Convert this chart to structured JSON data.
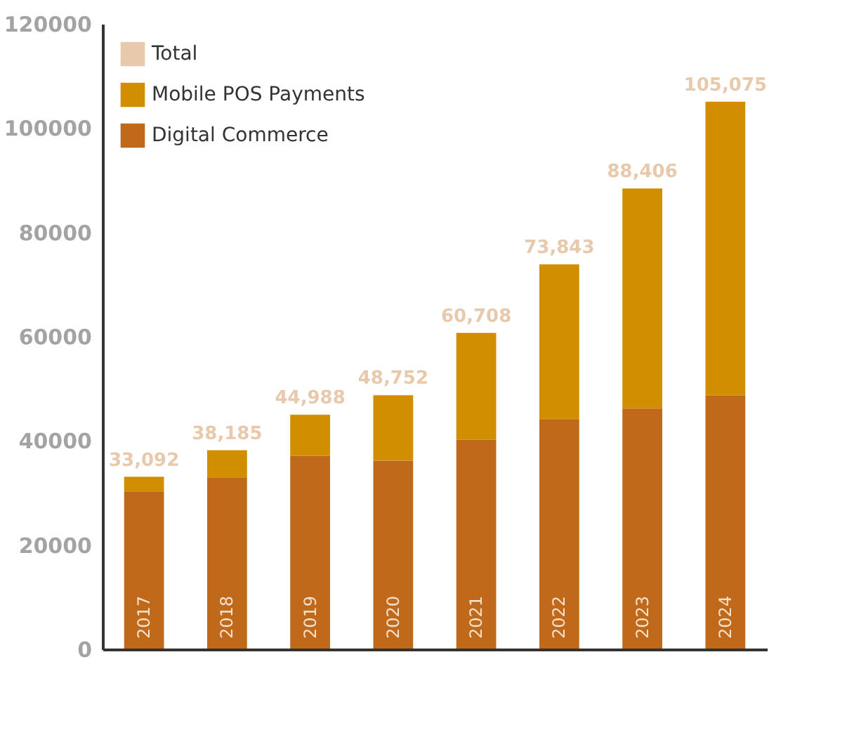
{
  "chart_data": {
    "type": "bar",
    "stacked": true,
    "categories": [
      "2017",
      "2018",
      "2019",
      "2020",
      "2021",
      "2022",
      "2023",
      "2024"
    ],
    "series": [
      {
        "name": "Digital Commerce",
        "color": "#c0691a",
        "values": [
          30300,
          33000,
          37100,
          36200,
          40200,
          44200,
          46200,
          48700
        ]
      },
      {
        "name": "Mobile POS Payments",
        "color": "#d18f00",
        "values": [
          2792,
          5185,
          7888,
          12552,
          20508,
          29643,
          42206,
          56375
        ]
      },
      {
        "name": "Total",
        "color": "#e9c9ab",
        "values": [
          null,
          null,
          null,
          null,
          null,
          null,
          null,
          null
        ]
      }
    ],
    "totals": [
      "33,092",
      "38,185",
      "44,988",
      "48,752",
      "60,708",
      "73,843",
      "88,406",
      "105,075"
    ],
    "ylim": [
      0,
      120000
    ],
    "yticks": [
      0,
      20000,
      40000,
      60000,
      80000,
      100000,
      120000
    ],
    "grid": false,
    "legend": "top left"
  }
}
